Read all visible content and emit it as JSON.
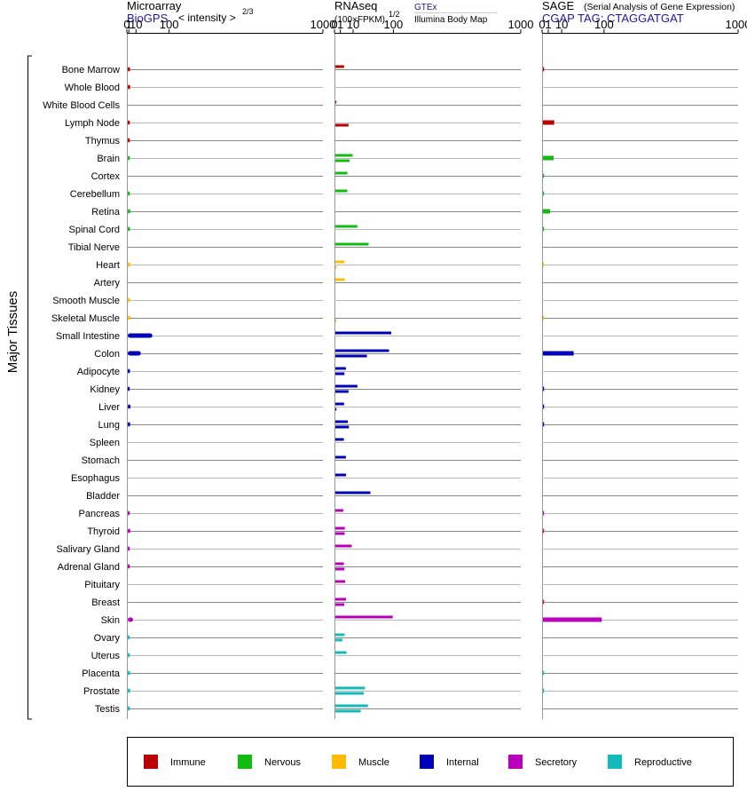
{
  "panels": [
    {
      "title": "Microarray",
      "source": "BioGPS",
      "scale_note": "< intensity >",
      "scale_exp": "2/3",
      "gamma": 0.6667,
      "axis_max": 1000,
      "ticks": [
        0,
        1,
        10,
        100,
        1000
      ],
      "tick_labels": [
        "0",
        "1",
        "10",
        "100",
        "1000"
      ]
    },
    {
      "title": "RNAseq",
      "scale_note": "(100×FPKM)",
      "scale_exp": "1/2",
      "gamma": 0.5,
      "axis_max": 1000,
      "ticks": [
        0,
        1,
        10,
        100,
        1000
      ],
      "tick_labels": [
        "0",
        "1",
        "10",
        "100",
        "1000"
      ],
      "sources": [
        "GTEx",
        "Illumina Body Map"
      ]
    },
    {
      "title": "SAGE",
      "subtitle": "(Serial Analysis of Gene Expression)",
      "source": "CGAP TAG: CTAGGATGAT",
      "gamma": 0.5,
      "axis_max": 1000,
      "ticks": [
        0,
        1,
        10,
        100,
        1000
      ],
      "tick_labels": [
        "0",
        "1",
        "10",
        "100",
        "1000"
      ]
    }
  ],
  "y_group_label": "Major Tissues",
  "colors": {
    "Immune": "#bb0000",
    "Nervous": "#11bb11",
    "Muscle": "#ffbb00",
    "Internal": "#0000bb",
    "Secretory": "#bb00bb",
    "Reproductive": "#11bbbb"
  },
  "legend": [
    "Immune",
    "Nervous",
    "Muscle",
    "Internal",
    "Secretory",
    "Reproductive"
  ],
  "chart_data": {
    "type": "bar",
    "title": "",
    "categories": [
      "Bone Marrow",
      "Whole Blood",
      "White Blood Cells",
      "Lymph Node",
      "Thymus",
      "Brain",
      "Cortex",
      "Cerebellum",
      "Retina",
      "Spinal Cord",
      "Tibial Nerve",
      "Heart",
      "Artery",
      "Smooth Muscle",
      "Skeletal Muscle",
      "Small Intestine",
      "Colon",
      "Adipocyte",
      "Kidney",
      "Liver",
      "Lung",
      "Spleen",
      "Stomach",
      "Esophagus",
      "Bladder",
      "Pancreas",
      "Thyroid",
      "Salivary Gland",
      "Adrenal Gland",
      "Pituitary",
      "Breast",
      "Skin",
      "Ovary",
      "Uterus",
      "Placenta",
      "Prostate",
      "Testis"
    ],
    "groups": [
      "Immune",
      "Immune",
      "Immune",
      "Immune",
      "Immune",
      "Nervous",
      "Nervous",
      "Nervous",
      "Nervous",
      "Nervous",
      "Nervous",
      "Muscle",
      "Muscle",
      "Muscle",
      "Muscle",
      "Internal",
      "Internal",
      "Internal",
      "Internal",
      "Internal",
      "Internal",
      "Internal",
      "Internal",
      "Internal",
      "Internal",
      "Secretory",
      "Secretory",
      "Secretory",
      "Secretory",
      "Secretory",
      "Secretory",
      "Secretory",
      "Reproductive",
      "Reproductive",
      "Reproductive",
      "Reproductive",
      "Reproductive"
    ],
    "series": [
      {
        "name": "Microarray",
        "values": [
          2.1,
          2.2,
          null,
          1.9,
          1.9,
          1.9,
          null,
          1.9,
          2.3,
          2.0,
          null,
          2.3,
          null,
          2.1,
          2.3,
          47,
          19,
          2.0,
          1.8,
          2.5,
          2.2,
          null,
          null,
          null,
          null,
          1.8,
          2.3,
          1.8,
          1.9,
          null,
          null,
          5.6,
          1.7,
          1.9,
          2.1,
          2.2,
          1.9
        ]
      },
      {
        "name": "GTEx",
        "values": [
          2.2,
          null,
          0.01,
          null,
          null,
          8.6,
          4.2,
          4.1,
          null,
          14.0,
          31.8,
          2.4,
          2.6,
          null,
          null,
          90,
          83,
          3.2,
          14.0,
          2.2,
          4.5,
          2.1,
          3.2,
          3.3,
          35.4,
          1.8,
          2.6,
          7.8,
          2.1,
          2.8,
          3.3,
          95,
          2.5,
          3.6,
          null,
          25.4,
          30.7
        ]
      },
      {
        "name": "Illumina Body Map",
        "values": [
          null,
          null,
          null,
          5.0,
          null,
          5.8,
          null,
          null,
          null,
          null,
          null,
          0.01,
          null,
          null,
          0.01,
          null,
          28.7,
          2.4,
          5.0,
          0.01,
          5.3,
          null,
          null,
          null,
          null,
          null,
          2.5,
          null,
          2.4,
          null,
          2.3,
          null,
          1.4,
          null,
          null,
          23.4,
          18.6
        ]
      },
      {
        "name": "SAGE",
        "values": [
          0.02,
          null,
          null,
          3.3,
          null,
          3.0,
          0.01,
          0.01,
          1.3,
          0.01,
          null,
          0.01,
          null,
          null,
          0.01,
          null,
          24.5,
          null,
          0.03,
          0.03,
          0.03,
          null,
          null,
          null,
          null,
          0.03,
          0.03,
          null,
          null,
          null,
          0.03,
          90,
          null,
          null,
          0.01,
          0.01,
          null
        ]
      }
    ]
  }
}
